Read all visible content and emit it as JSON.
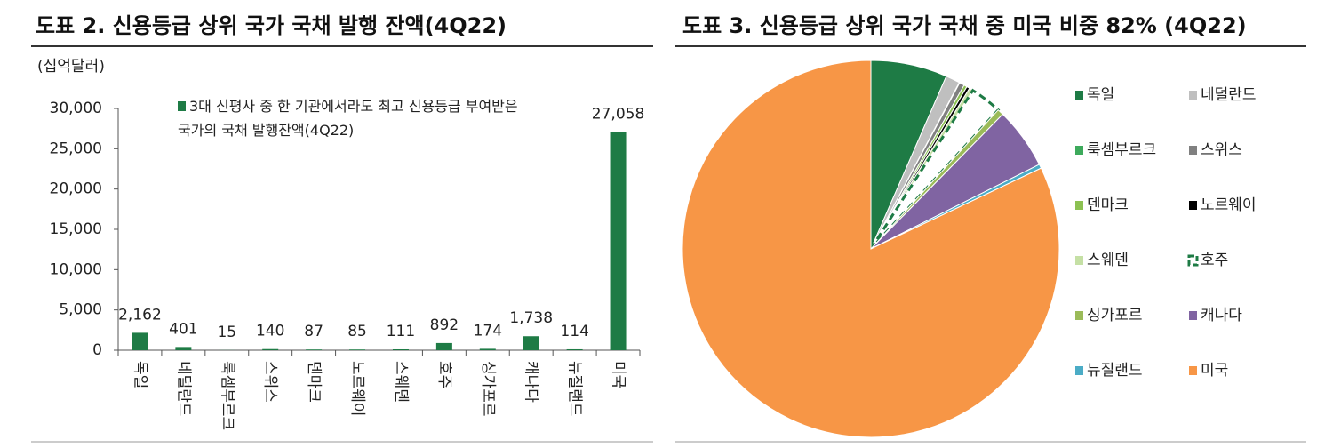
{
  "chart_data": [
    {
      "type": "bar",
      "title": "도표 2. 신용등급 상위 국가 국채 발행 잔액(4Q22)",
      "ylabel": "(십억달러)",
      "categories": [
        "독일",
        "네덜란드",
        "룩셈부르크",
        "스위스",
        "덴마크",
        "노르웨이",
        "스웨덴",
        "호주",
        "싱가포르",
        "캐나다",
        "뉴질랜드",
        "미국"
      ],
      "series": [
        {
          "name": "3대 신평사 중 한 기관에서라도 최고 신용등급 부여받은 국가의 국채 발행잔액(4Q22)",
          "color": "#1e7b45",
          "values": [
            2162,
            401,
            15,
            140,
            87,
            85,
            111,
            892,
            174,
            1738,
            114,
            27058
          ],
          "value_labels": [
            "2,162",
            "401",
            "15",
            "140",
            "87",
            "85",
            "111",
            "892",
            "174",
            "1,738",
            "114",
            "27,058"
          ]
        }
      ],
      "ylim": [
        0,
        30000
      ],
      "yticks": [
        0,
        {
          "value": 5000,
          "label": "5,000"
        },
        {
          "value": 10000,
          "label": "10,000"
        },
        {
          "value": 15000,
          "label": "15,000"
        },
        {
          "value": 20000,
          "label": "20,000"
        },
        {
          "value": 25000,
          "label": "25,000"
        },
        {
          "value": 30000,
          "label": "30,000"
        }
      ],
      "grid": false
    },
    {
      "type": "pie",
      "title": "도표 3. 신용등급 상위 국가 국채 중 미국 비중 82% (4Q22)",
      "categories": [
        "독일",
        "네덜란드",
        "룩셈부르크",
        "스위스",
        "덴마크",
        "노르웨이",
        "스웨덴",
        "호주",
        "싱가포르",
        "캐나다",
        "뉴질랜드",
        "미국"
      ],
      "values": [
        2162,
        401,
        15,
        140,
        87,
        85,
        111,
        892,
        174,
        1738,
        114,
        27058
      ],
      "colors": [
        "#1e7b45",
        "#bfbfbf",
        "#3daa5c",
        "#808080",
        "#8cc152",
        "#000000",
        "#c5e0a5",
        "#ffffff",
        "#9bbb59",
        "#8064a2",
        "#4bacc6",
        "#f79646"
      ],
      "dashed": [
        false,
        false,
        false,
        false,
        false,
        false,
        false,
        true,
        false,
        false,
        false,
        false
      ]
    }
  ]
}
